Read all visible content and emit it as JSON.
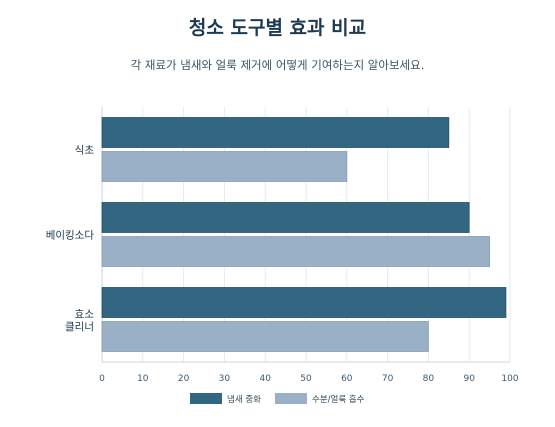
{
  "chart_data": {
    "type": "bar",
    "orientation": "horizontal",
    "title": "청소 도구별 효과 비교",
    "subtitle": "각 재료가 냄새와 얼룩 제거에 어떻게 기여하는지 알아보세요.",
    "categories": [
      [
        "식초"
      ],
      [
        "베이킹소다"
      ],
      [
        "효소",
        "클리너"
      ]
    ],
    "series": [
      {
        "name": "냄새 중화",
        "values": [
          85,
          90,
          99
        ],
        "color": "#336680"
      },
      {
        "name": "수분/얼룩 흡수",
        "values": [
          60,
          95,
          80
        ],
        "color": "#9ab0c7"
      }
    ],
    "xlim": [
      0,
      100
    ],
    "xticks": [
      0,
      10,
      20,
      30,
      40,
      50,
      60,
      70,
      80,
      90,
      100
    ],
    "grid": true,
    "legend_position": "bottom"
  }
}
